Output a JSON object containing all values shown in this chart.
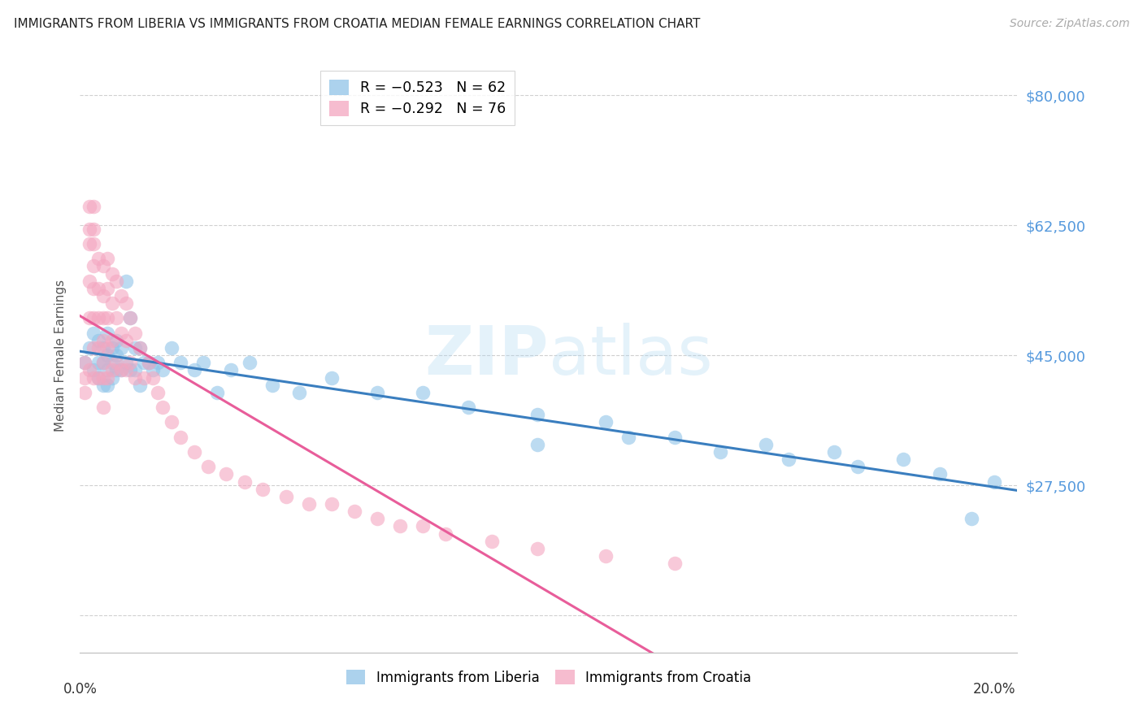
{
  "title": "IMMIGRANTS FROM LIBERIA VS IMMIGRANTS FROM CROATIA MEDIAN FEMALE EARNINGS CORRELATION CHART",
  "source": "Source: ZipAtlas.com",
  "ylabel": "Median Female Earnings",
  "ylim": [
    5000,
    85000
  ],
  "xlim": [
    0.0,
    0.205
  ],
  "color_liberia": "#90c4e8",
  "color_croatia": "#f4a6c0",
  "color_liberia_line": "#3a7ebf",
  "color_croatia_line": "#e85d9a",
  "color_ytick_label": "#5599dd",
  "background_color": "#ffffff",
  "ytick_positions": [
    10000,
    27500,
    45000,
    62500,
    80000
  ],
  "ytick_labels": [
    "",
    "$27,500",
    "$45,000",
    "$62,500",
    "$80,000"
  ],
  "grid_positions": [
    10000,
    27500,
    45000,
    62500,
    80000
  ],
  "liberia_x": [
    0.001,
    0.002,
    0.003,
    0.003,
    0.004,
    0.004,
    0.004,
    0.005,
    0.005,
    0.005,
    0.006,
    0.006,
    0.006,
    0.006,
    0.007,
    0.007,
    0.007,
    0.008,
    0.008,
    0.008,
    0.009,
    0.009,
    0.01,
    0.01,
    0.011,
    0.011,
    0.012,
    0.012,
    0.013,
    0.013,
    0.014,
    0.015,
    0.016,
    0.017,
    0.018,
    0.02,
    0.022,
    0.025,
    0.027,
    0.03,
    0.033,
    0.037,
    0.042,
    0.048,
    0.055,
    0.065,
    0.075,
    0.085,
    0.1,
    0.115,
    0.13,
    0.15,
    0.165,
    0.18,
    0.195,
    0.1,
    0.12,
    0.14,
    0.155,
    0.17,
    0.188,
    0.2
  ],
  "liberia_y": [
    44000,
    46000,
    48000,
    43000,
    47000,
    44000,
    42000,
    46000,
    44000,
    41000,
    48000,
    45000,
    43000,
    41000,
    46000,
    44000,
    42000,
    47000,
    45000,
    43000,
    46000,
    43000,
    55000,
    44000,
    50000,
    43000,
    46000,
    43000,
    46000,
    41000,
    44000,
    44000,
    43000,
    44000,
    43000,
    46000,
    44000,
    43000,
    44000,
    40000,
    43000,
    44000,
    41000,
    40000,
    42000,
    40000,
    40000,
    38000,
    37000,
    36000,
    34000,
    33000,
    32000,
    31000,
    23000,
    33000,
    34000,
    32000,
    31000,
    30000,
    29000,
    28000
  ],
  "croatia_x": [
    0.001,
    0.001,
    0.001,
    0.002,
    0.002,
    0.002,
    0.002,
    0.002,
    0.002,
    0.003,
    0.003,
    0.003,
    0.003,
    0.003,
    0.003,
    0.003,
    0.003,
    0.004,
    0.004,
    0.004,
    0.004,
    0.004,
    0.005,
    0.005,
    0.005,
    0.005,
    0.005,
    0.005,
    0.005,
    0.006,
    0.006,
    0.006,
    0.006,
    0.006,
    0.007,
    0.007,
    0.007,
    0.007,
    0.008,
    0.008,
    0.008,
    0.009,
    0.009,
    0.009,
    0.01,
    0.01,
    0.01,
    0.011,
    0.011,
    0.012,
    0.012,
    0.013,
    0.014,
    0.015,
    0.016,
    0.017,
    0.018,
    0.02,
    0.022,
    0.025,
    0.028,
    0.032,
    0.036,
    0.04,
    0.045,
    0.05,
    0.06,
    0.07,
    0.08,
    0.09,
    0.1,
    0.115,
    0.13,
    0.055,
    0.065,
    0.075
  ],
  "croatia_y": [
    44000,
    42000,
    40000,
    65000,
    62000,
    60000,
    55000,
    50000,
    43000,
    65000,
    62000,
    60000,
    57000,
    54000,
    50000,
    46000,
    42000,
    58000,
    54000,
    50000,
    46000,
    42000,
    57000,
    53000,
    50000,
    47000,
    44000,
    42000,
    38000,
    58000,
    54000,
    50000,
    46000,
    42000,
    56000,
    52000,
    47000,
    43000,
    55000,
    50000,
    44000,
    53000,
    48000,
    43000,
    52000,
    47000,
    43000,
    50000,
    44000,
    48000,
    42000,
    46000,
    42000,
    44000,
    42000,
    40000,
    38000,
    36000,
    34000,
    32000,
    30000,
    29000,
    28000,
    27000,
    26000,
    25000,
    24000,
    22000,
    21000,
    20000,
    19000,
    18000,
    17000,
    25000,
    23000,
    22000
  ]
}
